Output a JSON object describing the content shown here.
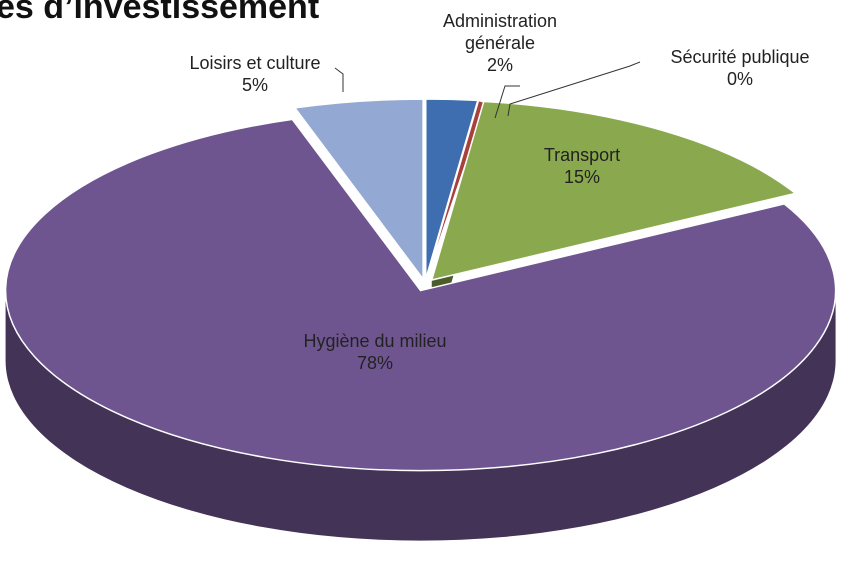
{
  "chart_data": {
    "type": "pie",
    "title": "es d’investissement",
    "categories": [
      "Administration générale",
      "Sécurité publique",
      "Transport",
      "Hygiène du milieu",
      "Loisirs et culture"
    ],
    "values": [
      2,
      0,
      15,
      78,
      5
    ],
    "value_labels": [
      "2%",
      "0%",
      "15%",
      "78%",
      "5%"
    ],
    "colors": [
      "#3e6db0",
      "#a8403c",
      "#8aa84e",
      "#6f5590",
      "#93a8d3"
    ]
  }
}
